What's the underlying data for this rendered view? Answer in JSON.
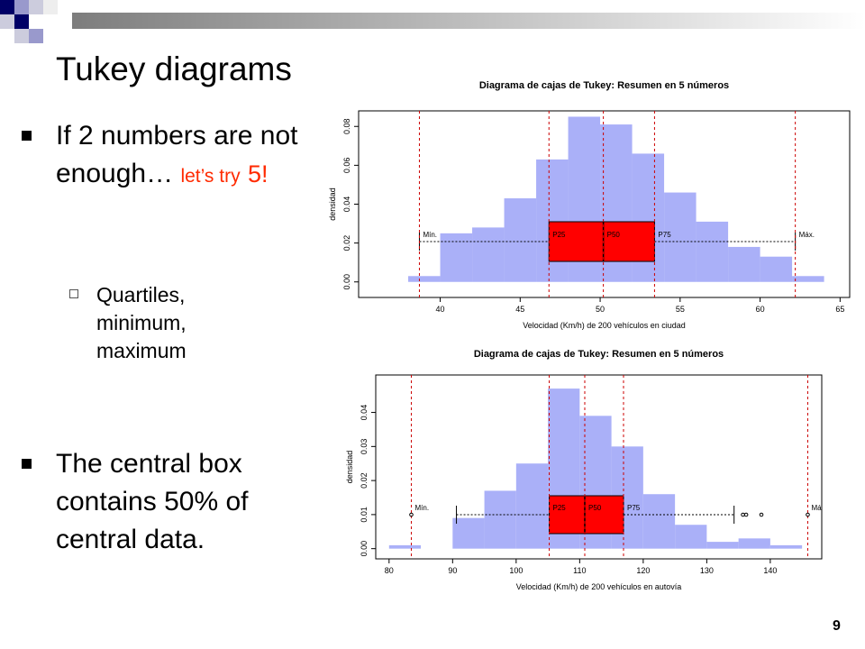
{
  "slide": {
    "title": "Tukey diagrams",
    "bullets": [
      {
        "parts": [
          "If 2 numbers are not enough…",
          "let’s try",
          "5!"
        ]
      },
      {
        "parts": [
          "Quartiles, minimum, maximum"
        ]
      },
      {
        "parts": [
          "The central box contains 50% of central data."
        ]
      }
    ],
    "page_number": "9"
  },
  "chart_data": [
    {
      "type": "histogram",
      "title": "Diagrama de cajas de Tukey: Resumen en 5 números",
      "x_label": "Velocidad (Km/h) de 200 vehículos en ciudad",
      "y_label": "densidad",
      "bins": [
        38,
        40,
        42,
        44,
        46,
        48,
        50,
        52,
        54,
        56,
        58,
        60,
        62,
        64
      ],
      "values": [
        0.003,
        0.025,
        0.028,
        0.043,
        0.063,
        0.085,
        0.081,
        0.066,
        0.046,
        0.031,
        0.018,
        0.013,
        0.003
      ],
      "color": "#aab0f8",
      "box_color": "#ff0000",
      "line_color": "#cc0000",
      "xlim": [
        34.9,
        65.6
      ],
      "ylim": [
        -0.008,
        0.088
      ],
      "xticks": [
        40,
        45,
        50,
        55,
        60,
        65
      ],
      "yticks": [
        {
          "value": 0,
          "label": "0.00"
        },
        {
          "value": 0.02,
          "label": "0.02"
        },
        {
          "value": 0.04,
          "label": "0.04"
        },
        {
          "value": 0.06,
          "label": "0.06"
        },
        {
          "value": 0.08,
          "label": "0.08"
        }
      ],
      "markers": [
        {
          "label": "Mín.",
          "value": 38.7
        },
        {
          "label": "P25",
          "value": 46.8
        },
        {
          "label": "P50",
          "value": 50.2
        },
        {
          "label": "P75",
          "value": 53.4
        },
        {
          "label": "Máx.",
          "value": 62.2
        }
      ],
      "whiskers": [
        38.7,
        62.2
      ],
      "outliers": []
    },
    {
      "type": "histogram",
      "title": "Diagrama de cajas de Tukey: Resumen en 5 números",
      "x_label": "Velocidad (Km/h) de 200 vehículos en autovía",
      "y_label": "densidad",
      "bins": [
        80,
        85,
        90,
        95,
        100,
        105,
        110,
        115,
        120,
        125,
        130,
        135,
        140,
        145
      ],
      "values": [
        0.001,
        0,
        0.009,
        0.017,
        0.025,
        0.047,
        0.039,
        0.03,
        0.016,
        0.007,
        0.002,
        0.003,
        0.001
      ],
      "color": "#aab0f8",
      "box_color": "#ff0000",
      "line_color": "#cc0000",
      "xlim": [
        77.9,
        148.1
      ],
      "ylim": [
        -0.003,
        0.051
      ],
      "xticks": [
        80,
        90,
        100,
        110,
        120,
        130,
        140
      ],
      "yticks": [
        {
          "value": 0,
          "label": "0.00"
        },
        {
          "value": 0.01,
          "label": "0.01"
        },
        {
          "value": 0.02,
          "label": "0.02"
        },
        {
          "value": 0.03,
          "label": "0.03"
        },
        {
          "value": 0.04,
          "label": "0.04"
        }
      ],
      "markers": [
        {
          "label": "Mín.",
          "value": 83.5
        },
        {
          "label": "P25",
          "value": 105.2
        },
        {
          "label": "P50",
          "value": 110.8
        },
        {
          "label": "P75",
          "value": 116.9
        },
        {
          "label": "Má",
          "value": 145.9
        }
      ],
      "whiskers": [
        90.6,
        134.3
      ],
      "outliers": [
        83.5,
        135.7,
        136.2,
        138.6,
        145.9
      ]
    }
  ]
}
